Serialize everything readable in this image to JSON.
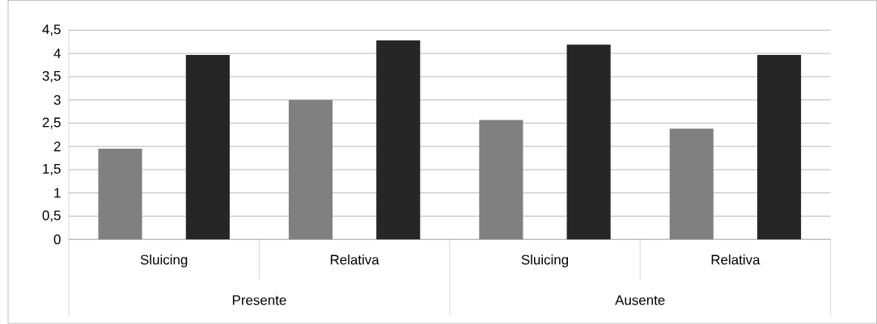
{
  "chart_data": {
    "type": "bar",
    "categories": [
      "Sluicing",
      "Relativa",
      "Sluicing",
      "Relativa"
    ],
    "series": [
      {
        "color": "#808080",
        "values": [
          1.95,
          3.0,
          2.57,
          2.38
        ]
      },
      {
        "color": "#262626",
        "values": [
          3.97,
          4.28,
          4.19,
          3.97
        ]
      }
    ],
    "annotations": [
      "Presente",
      "Ausente"
    ],
    "ylim": [
      0,
      4.5
    ],
    "yticks": [
      0,
      {
        "value": 0.5,
        "label": "0,5"
      },
      1,
      {
        "value": 1.5,
        "label": "1,5"
      },
      2,
      {
        "value": 2.5,
        "label": "2,5"
      },
      3,
      {
        "value": 3.5,
        "label": "3,5"
      },
      4,
      {
        "value": 4.5,
        "label": "4,5"
      }
    ],
    "grid": "y"
  }
}
